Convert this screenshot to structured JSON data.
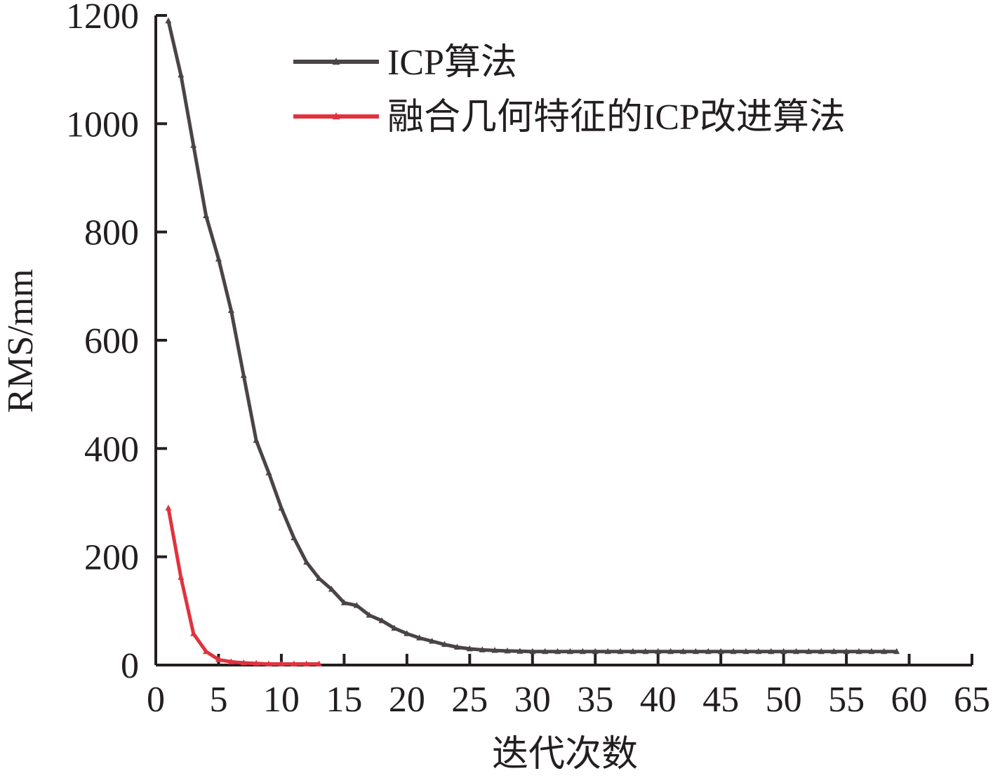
{
  "chart_data": {
    "type": "line",
    "xlabel": "迭代次数",
    "ylabel": "RMS/mm",
    "xlim": [
      0,
      65
    ],
    "ylim": [
      0,
      1200
    ],
    "x_ticks": [
      0,
      5,
      10,
      15,
      20,
      25,
      30,
      35,
      40,
      45,
      50,
      55,
      60,
      65
    ],
    "y_ticks": [
      0,
      200,
      400,
      600,
      800,
      1000,
      1200
    ],
    "grid": false,
    "legend_position": "top-right",
    "series": [
      {
        "name": "ICP算法",
        "color": "#4a4446",
        "marker": "triangle",
        "x": [
          1,
          2,
          3,
          4,
          5,
          6,
          7,
          8,
          9,
          10,
          11,
          12,
          13,
          14,
          15,
          16,
          17,
          18,
          19,
          20,
          21,
          22,
          23,
          24,
          25,
          26,
          27,
          28,
          29,
          30,
          31,
          32,
          33,
          34,
          35,
          36,
          37,
          38,
          39,
          40,
          41,
          42,
          43,
          44,
          45,
          46,
          47,
          48,
          49,
          50,
          51,
          52,
          53,
          54,
          55,
          56,
          57,
          58,
          59
        ],
        "y": [
          1190,
          1090,
          960,
          830,
          750,
          655,
          535,
          415,
          355,
          290,
          235,
          190,
          160,
          140,
          115,
          110,
          92,
          82,
          68,
          58,
          50,
          44,
          38,
          33,
          30,
          28,
          27,
          26,
          25.5,
          25,
          25,
          25,
          25,
          25,
          25,
          25,
          25,
          25,
          25,
          25,
          25,
          25,
          25,
          25,
          25,
          25,
          25,
          25,
          25,
          25,
          25,
          25,
          25,
          25,
          25,
          25,
          25,
          25,
          25
        ]
      },
      {
        "name": "融合几何特征的ICP改进算法",
        "color": "#e0333f",
        "marker": "triangle",
        "x": [
          1,
          2,
          3,
          4,
          5,
          6,
          7,
          8,
          9,
          10,
          11,
          12,
          13
        ],
        "y": [
          290,
          162,
          58,
          25,
          10,
          6,
          4,
          3,
          2,
          2,
          2,
          2,
          2
        ]
      }
    ]
  }
}
